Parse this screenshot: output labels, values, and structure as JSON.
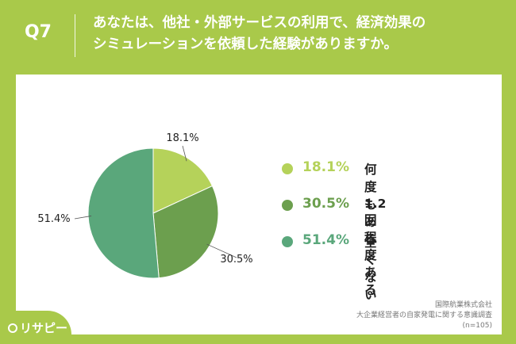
{
  "header": {
    "question_number": "Q7",
    "question_line1": "あなたは、他社・外部サービスの利用で、経済効果の",
    "question_line2": "シミュレーションを依頼した経験がありますか。"
  },
  "chart_data": {
    "type": "pie",
    "slices": [
      {
        "label": "何度もある",
        "value": 18.1,
        "display": "18.1%",
        "color": "#b5d25a"
      },
      {
        "label": "1.2回程度ある",
        "value": 30.5,
        "display": "30.5%",
        "color": "#6c9f4e"
      },
      {
        "label": "全くない",
        "value": 51.4,
        "display": "51.4%",
        "color": "#5aa77b"
      }
    ],
    "legend_placement": "right"
  },
  "source": {
    "line1": "国際航業株式会社",
    "line2": "大企業経営者の自家発電に関する意識調査",
    "line3": "(n=105)"
  },
  "logo": {
    "text": "リサピー"
  }
}
